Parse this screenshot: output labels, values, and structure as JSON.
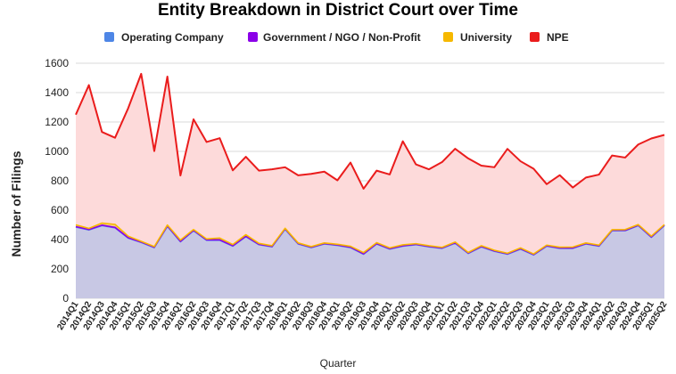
{
  "chart_data": {
    "type": "area",
    "title": "Entity Breakdown in District Court over Time",
    "xlabel": "Quarter",
    "ylabel": "Number of Filings",
    "ylim": [
      0,
      1600
    ],
    "yticks": [
      0,
      200,
      400,
      600,
      800,
      1000,
      1200,
      1400,
      1600
    ],
    "grid": true,
    "legend_position": "top",
    "x": [
      "2014Q1",
      "2014Q2",
      "2014Q3",
      "2014Q4",
      "2015Q1",
      "2015Q2",
      "2015Q3",
      "2015Q4",
      "2016Q1",
      "2016Q2",
      "2016Q3",
      "2016Q4",
      "2017Q1",
      "2017Q2",
      "2017Q3",
      "2017Q4",
      "2018Q1",
      "2018Q2",
      "2018Q3",
      "2018Q4",
      "2019Q1",
      "2019Q2",
      "2019Q3",
      "2019Q4",
      "2020Q1",
      "2020Q2",
      "2020Q3",
      "2020Q4",
      "2021Q1",
      "2021Q2",
      "2021Q3",
      "2021Q4",
      "2022Q1",
      "2022Q2",
      "2022Q3",
      "2022Q4",
      "2023Q1",
      "2023Q2",
      "2023Q3",
      "2023Q4",
      "2024Q1",
      "2024Q2",
      "2024Q3",
      "2024Q4",
      "2025Q1",
      "2025Q2"
    ],
    "series": [
      {
        "name": "Operating Company",
        "color": "#4e86e6",
        "fill": "#c8c8e4",
        "values": [
          485,
          465,
          495,
          480,
          410,
          380,
          345,
          490,
          385,
          460,
          395,
          395,
          355,
          420,
          365,
          350,
          470,
          370,
          345,
          370,
          360,
          345,
          300,
          370,
          335,
          355,
          365,
          350,
          340,
          375,
          305,
          350,
          320,
          300,
          335,
          295,
          355,
          340,
          340,
          370,
          355,
          460,
          460,
          495,
          415,
          495
        ]
      },
      {
        "name": "Government / NGO / Non-Profit",
        "color": "#8b00e8",
        "fill": "#b57bd6",
        "values": [
          3,
          3,
          3,
          3,
          3,
          3,
          3,
          3,
          3,
          3,
          3,
          3,
          3,
          3,
          3,
          3,
          3,
          3,
          3,
          3,
          3,
          3,
          3,
          3,
          3,
          3,
          3,
          3,
          3,
          3,
          3,
          3,
          3,
          3,
          3,
          3,
          3,
          3,
          3,
          3,
          3,
          3,
          3,
          3,
          3,
          3
        ]
      },
      {
        "name": "University",
        "color": "#f6b800",
        "fill": "#f4d28a",
        "values": [
          12,
          8,
          14,
          20,
          10,
          5,
          4,
          6,
          8,
          5,
          6,
          12,
          8,
          10,
          6,
          5,
          4,
          4,
          4,
          4,
          5,
          6,
          8,
          6,
          5,
          6,
          4,
          5,
          4,
          5,
          4,
          5,
          4,
          4,
          5,
          4,
          4,
          5,
          6,
          4,
          4,
          4,
          5,
          4,
          5,
          4
        ]
      },
      {
        "name": "NPE",
        "color": "#ea1c1c",
        "fill": "#fddada",
        "values": [
          750,
          975,
          620,
          590,
          870,
          1140,
          650,
          1010,
          440,
          750,
          660,
          680,
          505,
          530,
          495,
          520,
          415,
          460,
          495,
          485,
          435,
          570,
          435,
          490,
          500,
          705,
          540,
          520,
          580,
          635,
          640,
          545,
          565,
          710,
          590,
          580,
          415,
          490,
          405,
          445,
          480,
          505,
          490,
          545,
          665,
          610
        ]
      }
    ]
  }
}
